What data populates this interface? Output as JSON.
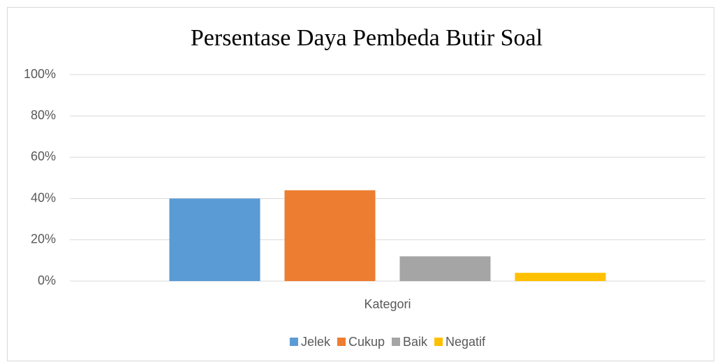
{
  "chart_data": {
    "type": "bar",
    "title": "Persentase Daya Pembeda Butir Soal",
    "categories": [
      "Kategori"
    ],
    "series": [
      {
        "name": "Jelek",
        "color": "#5b9bd5",
        "values": [
          40
        ]
      },
      {
        "name": "Cukup",
        "color": "#ed7d31",
        "values": [
          44
        ]
      },
      {
        "name": "Baik",
        "color": "#a5a5a5",
        "values": [
          12
        ]
      },
      {
        "name": "Negatif",
        "color": "#ffc000",
        "values": [
          4
        ]
      }
    ],
    "ylim": [
      0,
      100
    ],
    "yticks": [
      {
        "value": 0,
        "label": "0%"
      },
      {
        "value": 20,
        "label": "20%"
      },
      {
        "value": 40,
        "label": "40%"
      },
      {
        "value": 60,
        "label": "60%"
      },
      {
        "value": 80,
        "label": "80%"
      },
      {
        "value": 100,
        "label": "100%"
      }
    ],
    "grid": true,
    "legend": "bottom"
  }
}
